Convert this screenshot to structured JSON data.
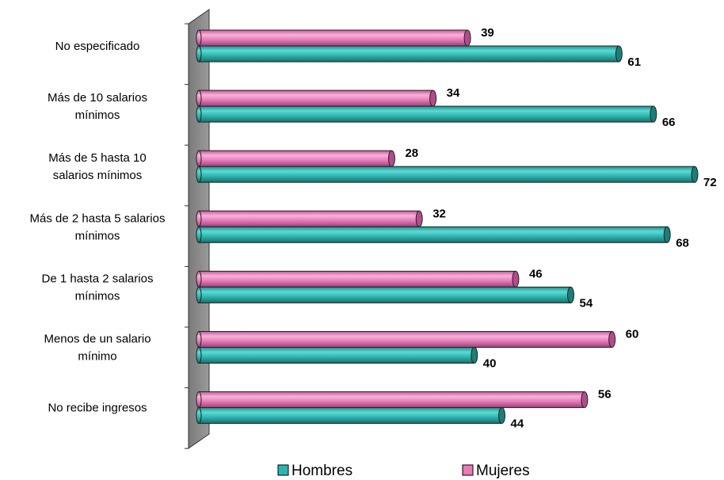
{
  "chart_data": {
    "type": "bar",
    "orientation": "horizontal",
    "categories": [
      "No especificado",
      "Más de 10 salarios mínimos",
      "Más de 5 hasta 10 salarios mínimos",
      "Más de 2 hasta 5 salarios mínimos",
      "De 1 hasta 2 salarios mínimos",
      "Menos de un salario mínimo",
      "No recibe ingresos"
    ],
    "category_lines": [
      [
        "No especificado"
      ],
      [
        "Más de 10 salarios",
        "mínimos"
      ],
      [
        "Más de 5 hasta 10",
        "salarios mínimos"
      ],
      [
        "Más de 2 hasta 5 salarios",
        "mínimos"
      ],
      [
        "De 1 hasta 2 salarios",
        "mínimos"
      ],
      [
        "Menos de un salario",
        "mínimo"
      ],
      [
        "No recibe ingresos"
      ]
    ],
    "series": [
      {
        "name": "Hombres",
        "color": "#2cb5b0",
        "values": [
          61,
          66,
          72,
          68,
          54,
          40,
          44
        ]
      },
      {
        "name": "Mujeres",
        "color": "#e87ab8",
        "values": [
          39,
          34,
          28,
          32,
          46,
          60,
          56
        ]
      }
    ],
    "xlim": [
      0,
      72
    ],
    "grid": false,
    "legend_position": "bottom",
    "legend": [
      "Hombres",
      "Mujeres"
    ]
  }
}
